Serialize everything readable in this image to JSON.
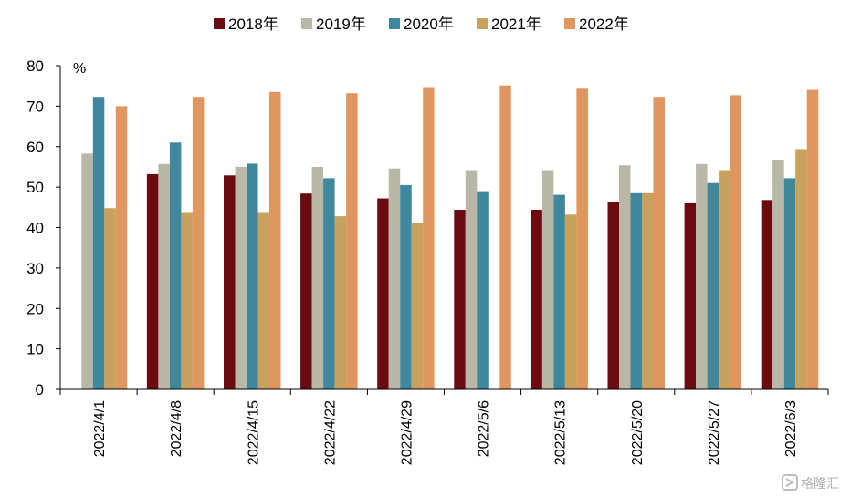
{
  "chart_data": {
    "type": "bar",
    "ylabel": "%",
    "ylim": [
      0,
      80
    ],
    "yticks": [
      0,
      10,
      20,
      30,
      40,
      50,
      60,
      70,
      80
    ],
    "categories": [
      "2022/4/1",
      "2022/4/8",
      "2022/4/15",
      "2022/4/22",
      "2022/4/29",
      "2022/5/6",
      "2022/5/13",
      "2022/5/20",
      "2022/5/27",
      "2022/6/3"
    ],
    "legend_position": "top",
    "grid": false,
    "series": [
      {
        "name": "2018年",
        "color": "#6b0a0f",
        "values": [
          null,
          53.2,
          52.9,
          48.4,
          47.2,
          44.4,
          44.4,
          46.4,
          46.0,
          46.8
        ]
      },
      {
        "name": "2019年",
        "color": "#b9b8a6",
        "values": [
          58.3,
          55.7,
          55.0,
          55.0,
          54.6,
          54.2,
          54.2,
          55.4,
          55.7,
          56.6
        ]
      },
      {
        "name": "2020年",
        "color": "#3f879d",
        "values": [
          72.3,
          61.0,
          55.8,
          52.2,
          50.5,
          49.0,
          48.1,
          48.5,
          51.0,
          52.2
        ]
      },
      {
        "name": "2021年",
        "color": "#c8a15c",
        "values": [
          44.8,
          43.6,
          43.6,
          42.8,
          41.1,
          null,
          43.2,
          48.5,
          54.2,
          59.4
        ]
      },
      {
        "name": "2022年",
        "color": "#e0965f",
        "values": [
          70.0,
          72.3,
          73.5,
          73.2,
          74.7,
          75.1,
          74.3,
          72.3,
          72.7,
          74.0
        ]
      }
    ]
  },
  "watermark": {
    "text": "格隆汇",
    "icon": "bracket-logo-icon"
  }
}
